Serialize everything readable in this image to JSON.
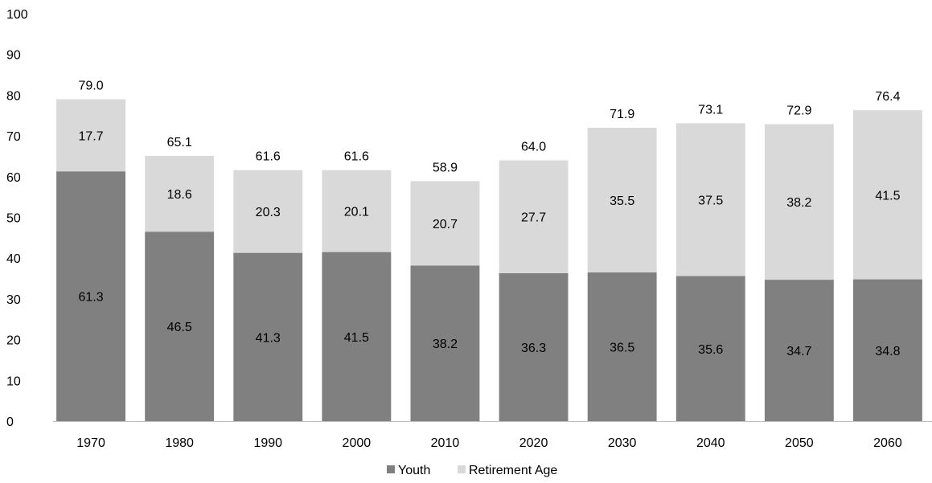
{
  "chart_data": {
    "type": "bar",
    "stacked": true,
    "categories": [
      "1970",
      "1980",
      "1990",
      "2000",
      "2010",
      "2020",
      "2030",
      "2040",
      "2050",
      "2060"
    ],
    "series": [
      {
        "name": "Youth",
        "values": [
          61.3,
          46.5,
          41.3,
          41.5,
          38.2,
          36.3,
          36.5,
          35.6,
          34.7,
          34.8
        ],
        "color": "#808080"
      },
      {
        "name": "Retirement Age",
        "values": [
          17.7,
          18.6,
          20.3,
          20.1,
          20.7,
          27.7,
          35.5,
          37.5,
          38.2,
          41.5
        ],
        "color": "#d9d9d9"
      }
    ],
    "totals": [
      "79.0",
      "65.1",
      "61.6",
      "61.6",
      "58.9",
      "64.0",
      "71.9",
      "73.1",
      "72.9",
      "76.4"
    ],
    "ylim": [
      0,
      100
    ],
    "yticks": [
      0,
      10,
      20,
      30,
      40,
      50,
      60,
      70,
      80,
      90,
      100
    ],
    "grid": false,
    "legend": "bottom-center"
  }
}
